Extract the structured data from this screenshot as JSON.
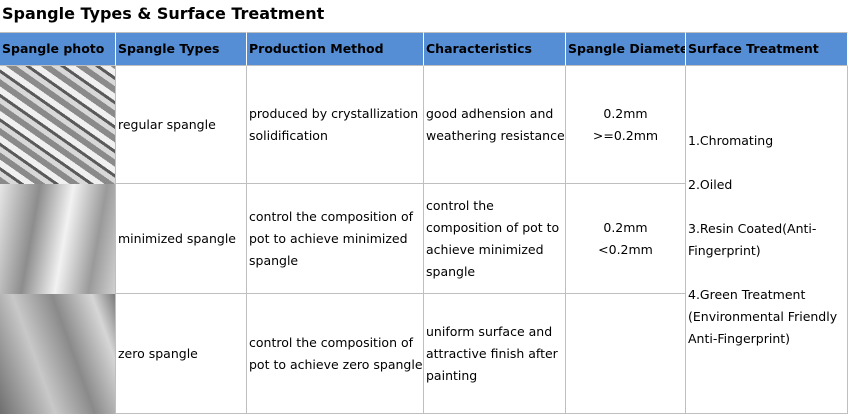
{
  "title": "Spangle Types & Surface Treatment",
  "table": {
    "headers": [
      "Spangle photo",
      "Spangle Types",
      "Production Method",
      "Characteristics",
      "Spangle Diameter",
      "Surface Treatment"
    ],
    "rows": [
      {
        "type": "regular spangle",
        "method": [
          "produced by crystallization",
          "solidification"
        ],
        "characteristics": [
          "good adhension and",
          "weathering resistance"
        ],
        "diameter": [
          "0.2mm",
          ">=0.2mm"
        ]
      },
      {
        "type": "minimized spangle",
        "method": [
          "control the composition of",
          "pot to achieve minimized",
          "spangle"
        ],
        "characteristics": [
          "control the",
          "composition of pot to",
          "achieve minimized",
          "spangle"
        ],
        "diameter": [
          "0.2mm",
          "<0.2mm"
        ]
      },
      {
        "type": "zero spangle",
        "method": [
          "control the composition of",
          "pot to achieve zero spangle"
        ],
        "characteristics": [
          "uniform surface and",
          "attractive finish after",
          "painting"
        ],
        "diameter": []
      }
    ],
    "surface_treatment": [
      [
        "1.Chromating"
      ],
      [
        "2.Oiled"
      ],
      [
        "3.Resin Coated(Anti-",
        "Fingerprint)"
      ],
      [
        "4.Green Treatment",
        "(Environmental Friendly",
        "Anti-Fingerprint)"
      ]
    ]
  }
}
